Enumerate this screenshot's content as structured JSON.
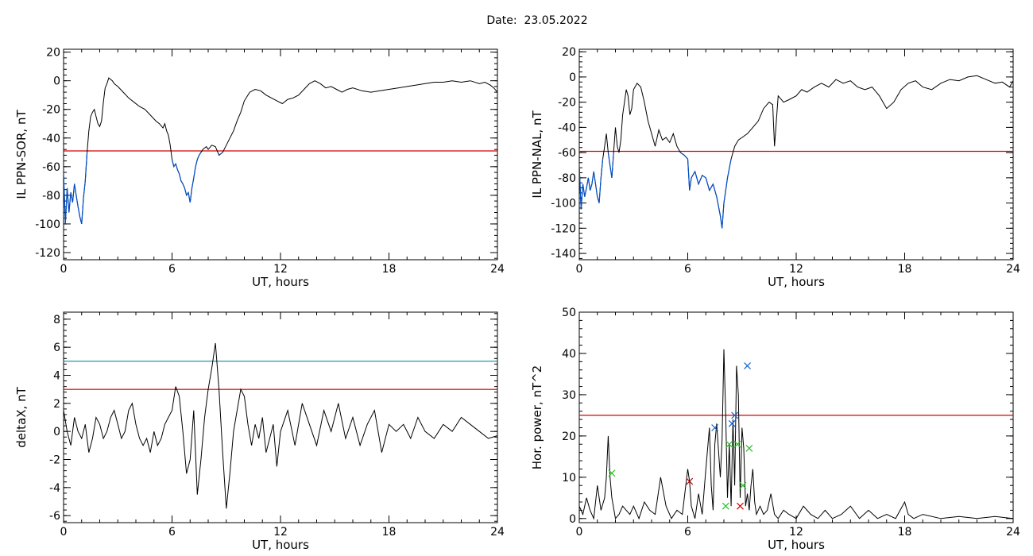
{
  "header": {
    "date_text": "Date:  23.05.2022"
  },
  "chart_data": [
    {
      "type": "line",
      "ylabel": "IL PPN-SOR, nT",
      "xlabel": "UT, hours",
      "xlim": [
        0,
        24
      ],
      "ylim": [
        -125,
        22
      ],
      "xticks": [
        0,
        6,
        12,
        18,
        24
      ],
      "yticks": [
        -120,
        -100,
        -80,
        -60,
        -40,
        -20,
        0,
        20
      ],
      "threshold": {
        "value": -49,
        "color": "#d40000"
      },
      "colors": {
        "line": "#000000",
        "highlight": "#0050c8"
      },
      "highlight_below": -49,
      "series": [
        {
          "x": [
            0,
            0.1,
            0.2,
            0.3,
            0.4,
            0.5,
            0.6,
            0.7,
            0.8,
            0.9,
            1.0,
            1.1,
            1.2,
            1.3,
            1.4,
            1.5,
            1.6,
            1.7,
            1.8,
            1.9,
            2.0,
            2.1,
            2.2,
            2.3,
            2.4,
            2.5,
            2.6,
            2.7,
            2.8,
            2.9,
            3.0,
            3.3,
            3.6,
            3.9,
            4.2,
            4.5,
            4.8,
            5.1,
            5.3,
            5.5,
            5.6,
            5.7,
            5.8,
            5.9,
            6.0,
            6.1,
            6.2,
            6.3,
            6.4,
            6.5,
            6.6,
            6.7,
            6.8,
            6.9,
            7.0,
            7.1,
            7.2,
            7.3,
            7.4,
            7.5,
            7.6,
            7.7,
            7.8,
            7.9,
            8.0,
            8.2,
            8.4,
            8.6,
            8.8,
            9.0,
            9.2,
            9.4,
            9.6,
            9.8,
            10.0,
            10.3,
            10.6,
            10.9,
            11.2,
            11.5,
            11.8,
            12.1,
            12.4,
            12.7,
            13.0,
            13.3,
            13.6,
            13.9,
            14.2,
            14.5,
            14.8,
            15.1,
            15.4,
            15.7,
            16.0,
            16.5,
            17.0,
            17.5,
            18.0,
            18.5,
            19.0,
            19.5,
            20.0,
            20.5,
            21.0,
            21.5,
            22.0,
            22.5,
            23.0,
            23.3,
            23.6,
            23.8,
            24.0
          ],
          "y": [
            -65,
            -100,
            -75,
            -92,
            -78,
            -85,
            -72,
            -80,
            -88,
            -95,
            -100,
            -82,
            -70,
            -50,
            -35,
            -25,
            -22,
            -20,
            -25,
            -30,
            -32,
            -28,
            -15,
            -5,
            -2,
            2,
            1,
            0,
            -2,
            -3,
            -4,
            -8,
            -12,
            -15,
            -18,
            -20,
            -24,
            -28,
            -30,
            -33,
            -30,
            -35,
            -38,
            -45,
            -55,
            -60,
            -58,
            -62,
            -65,
            -70,
            -72,
            -75,
            -80,
            -78,
            -85,
            -75,
            -68,
            -60,
            -55,
            -52,
            -50,
            -48,
            -47,
            -46,
            -48,
            -45,
            -46,
            -52,
            -50,
            -45,
            -40,
            -35,
            -28,
            -22,
            -14,
            -8,
            -6,
            -7,
            -10,
            -12,
            -14,
            -16,
            -13,
            -12,
            -10,
            -6,
            -2,
            0,
            -2,
            -5,
            -4,
            -6,
            -8,
            -6,
            -5,
            -7,
            -8,
            -7,
            -6,
            -5,
            -4,
            -3,
            -2,
            -1,
            -1,
            0,
            -1,
            0,
            -2,
            -1,
            -3,
            -5,
            -8
          ]
        }
      ]
    },
    {
      "type": "line",
      "ylabel": "IL PPN-NAL, nT",
      "xlabel": "UT, hours",
      "xlim": [
        0,
        24
      ],
      "ylim": [
        -145,
        22
      ],
      "xticks": [
        0,
        6,
        12,
        18,
        24
      ],
      "yticks": [
        -140,
        -120,
        -100,
        -80,
        -60,
        -40,
        -20,
        0,
        20
      ],
      "threshold": {
        "value": -59,
        "color": "#d40000"
      },
      "colors": {
        "line": "#000000",
        "highlight": "#0050c8"
      },
      "highlight_below": -59,
      "series": [
        {
          "x": [
            0,
            0.1,
            0.2,
            0.3,
            0.4,
            0.5,
            0.6,
            0.7,
            0.8,
            0.9,
            1.0,
            1.1,
            1.2,
            1.3,
            1.4,
            1.5,
            1.6,
            1.7,
            1.8,
            1.9,
            2.0,
            2.1,
            2.2,
            2.3,
            2.4,
            2.5,
            2.6,
            2.7,
            2.8,
            2.9,
            3.0,
            3.2,
            3.4,
            3.6,
            3.8,
            4.0,
            4.2,
            4.4,
            4.6,
            4.8,
            5.0,
            5.2,
            5.4,
            5.6,
            5.8,
            6.0,
            6.1,
            6.2,
            6.4,
            6.6,
            6.8,
            7.0,
            7.2,
            7.4,
            7.6,
            7.8,
            7.9,
            8.0,
            8.1,
            8.2,
            8.4,
            8.6,
            8.8,
            9.0,
            9.3,
            9.6,
            9.9,
            10.2,
            10.5,
            10.7,
            10.8,
            11.0,
            11.3,
            11.6,
            12.0,
            12.3,
            12.6,
            13.0,
            13.4,
            13.8,
            14.2,
            14.6,
            15.0,
            15.4,
            15.8,
            16.2,
            16.6,
            17.0,
            17.4,
            17.8,
            18.2,
            18.6,
            19.0,
            19.5,
            20.0,
            20.5,
            21.0,
            21.5,
            22.0,
            22.5,
            23.0,
            23.4,
            23.8,
            24.0
          ],
          "y": [
            -70,
            -105,
            -85,
            -95,
            -88,
            -80,
            -90,
            -85,
            -75,
            -85,
            -95,
            -100,
            -80,
            -65,
            -55,
            -45,
            -60,
            -70,
            -80,
            -60,
            -40,
            -55,
            -60,
            -50,
            -30,
            -20,
            -10,
            -15,
            -30,
            -25,
            -10,
            -5,
            -8,
            -20,
            -35,
            -45,
            -55,
            -42,
            -50,
            -48,
            -52,
            -45,
            -55,
            -60,
            -62,
            -65,
            -90,
            -80,
            -75,
            -85,
            -78,
            -80,
            -90,
            -85,
            -95,
            -110,
            -120,
            -100,
            -90,
            -80,
            -65,
            -55,
            -50,
            -48,
            -45,
            -40,
            -35,
            -25,
            -20,
            -22,
            -55,
            -15,
            -20,
            -18,
            -15,
            -10,
            -12,
            -8,
            -5,
            -8,
            -2,
            -5,
            -3,
            -8,
            -10,
            -8,
            -15,
            -25,
            -20,
            -10,
            -5,
            -3,
            -8,
            -10,
            -5,
            -2,
            -3,
            0,
            1,
            -2,
            -5,
            -4,
            -8,
            -3
          ]
        }
      ]
    },
    {
      "type": "line",
      "ylabel": "deltaX, nT",
      "xlabel": "UT, hours",
      "xlim": [
        0,
        24
      ],
      "ylim": [
        -6.5,
        8.5
      ],
      "xticks": [
        0,
        6,
        12,
        18,
        24
      ],
      "yticks": [
        -6,
        -4,
        -2,
        0,
        2,
        4,
        6,
        8
      ],
      "thresholds": [
        {
          "value": 5,
          "color": "#0a8a96"
        },
        {
          "value": 3,
          "color": "#d40000"
        }
      ],
      "colors": {
        "line": "#000000"
      },
      "series": [
        {
          "x": [
            0,
            0.2,
            0.4,
            0.6,
            0.8,
            1.0,
            1.2,
            1.4,
            1.6,
            1.8,
            2.0,
            2.2,
            2.4,
            2.6,
            2.8,
            3.0,
            3.2,
            3.4,
            3.6,
            3.8,
            4.0,
            4.2,
            4.4,
            4.6,
            4.8,
            5.0,
            5.2,
            5.4,
            5.6,
            5.8,
            6.0,
            6.2,
            6.4,
            6.6,
            6.8,
            7.0,
            7.2,
            7.4,
            7.6,
            7.8,
            8.0,
            8.2,
            8.4,
            8.6,
            8.8,
            9.0,
            9.2,
            9.4,
            9.6,
            9.8,
            10.0,
            10.2,
            10.4,
            10.6,
            10.8,
            11.0,
            11.2,
            11.4,
            11.6,
            11.8,
            12.0,
            12.4,
            12.8,
            13.2,
            13.6,
            14.0,
            14.4,
            14.8,
            15.2,
            15.6,
            16.0,
            16.4,
            16.8,
            17.2,
            17.6,
            18.0,
            18.4,
            18.8,
            19.2,
            19.6,
            20.0,
            20.5,
            21.0,
            21.5,
            22.0,
            22.5,
            23.0,
            23.5,
            24.0
          ],
          "y": [
            1.5,
            0.0,
            -1.0,
            1.0,
            0.0,
            -0.5,
            0.5,
            -1.5,
            -0.5,
            1.0,
            0.5,
            -0.5,
            0.0,
            1.0,
            1.5,
            0.5,
            -0.5,
            0.0,
            1.5,
            2.0,
            0.5,
            -0.5,
            -1.0,
            -0.5,
            -1.5,
            0.0,
            -1.0,
            -0.5,
            0.5,
            1.0,
            1.5,
            3.2,
            2.5,
            0.0,
            -3.0,
            -2.0,
            1.5,
            -4.5,
            -2.0,
            1.0,
            3.0,
            4.5,
            6.3,
            3.0,
            -1.5,
            -5.5,
            -3.0,
            0.0,
            1.5,
            3.0,
            2.5,
            0.5,
            -1.0,
            0.5,
            -0.5,
            1.0,
            -1.5,
            -0.5,
            0.5,
            -2.5,
            0.0,
            1.5,
            -1.0,
            2.0,
            0.5,
            -1.0,
            1.5,
            0.0,
            2.0,
            -0.5,
            1.0,
            -1.0,
            0.5,
            1.5,
            -1.5,
            0.5,
            0.0,
            0.5,
            -0.5,
            1.0,
            0.0,
            -0.5,
            0.5,
            0.0,
            1.0,
            0.5,
            0.0,
            -0.5,
            -0.3
          ]
        }
      ]
    },
    {
      "type": "line",
      "ylabel": "Hor. power, nT^2",
      "xlabel": "UT, hours",
      "xlim": [
        0,
        24
      ],
      "ylim": [
        -1,
        50
      ],
      "xticks": [
        0,
        6,
        12,
        18,
        24
      ],
      "yticks": [
        0,
        10,
        20,
        30,
        40,
        50
      ],
      "threshold": {
        "value": 25,
        "color": "#d40000"
      },
      "colors": {
        "line": "#000000"
      },
      "series": [
        {
          "x": [
            0,
            0.2,
            0.4,
            0.6,
            0.8,
            1.0,
            1.2,
            1.4,
            1.5,
            1.6,
            1.7,
            1.8,
            2.0,
            2.2,
            2.4,
            2.6,
            2.8,
            3.0,
            3.3,
            3.6,
            3.9,
            4.2,
            4.5,
            4.8,
            5.1,
            5.4,
            5.7,
            6.0,
            6.1,
            6.2,
            6.4,
            6.6,
            6.8,
            7.0,
            7.2,
            7.3,
            7.4,
            7.5,
            7.6,
            7.8,
            7.9,
            8.0,
            8.1,
            8.2,
            8.3,
            8.4,
            8.5,
            8.6,
            8.7,
            8.8,
            8.9,
            9.0,
            9.1,
            9.2,
            9.3,
            9.4,
            9.5,
            9.6,
            9.7,
            9.8,
            10.0,
            10.2,
            10.4,
            10.6,
            10.8,
            11.0,
            11.3,
            11.6,
            12.0,
            12.4,
            12.8,
            13.2,
            13.6,
            14.0,
            14.5,
            15.0,
            15.5,
            16.0,
            16.5,
            17.0,
            17.5,
            18.0,
            18.2,
            18.5,
            19.0,
            20.0,
            21.0,
            22.0,
            23.0,
            24.0
          ],
          "y": [
            3,
            1,
            5,
            2,
            0,
            8,
            2,
            5,
            10,
            20,
            10,
            5,
            0,
            1,
            3,
            2,
            1,
            3,
            0,
            4,
            2,
            1,
            10,
            3,
            0,
            2,
            1,
            12,
            9,
            3,
            0,
            6,
            1,
            12,
            22,
            8,
            2,
            18,
            23,
            10,
            19,
            41,
            25,
            5,
            18,
            3,
            24,
            8,
            37,
            30,
            5,
            22,
            17,
            3,
            6,
            2,
            8,
            12,
            4,
            1,
            3,
            1,
            2,
            6,
            1,
            0,
            2,
            1,
            0,
            3,
            1,
            0,
            2,
            0,
            1,
            3,
            0,
            2,
            0,
            1,
            0,
            4,
            1,
            0,
            1,
            0,
            0.5,
            0,
            0.5,
            0
          ]
        }
      ],
      "markers": [
        {
          "x": 1.8,
          "y": 11,
          "color": "#22c422"
        },
        {
          "x": 6.1,
          "y": 9,
          "color": "#a01010"
        },
        {
          "x": 7.5,
          "y": 22,
          "color": "#1060d0"
        },
        {
          "x": 8.1,
          "y": 3,
          "color": "#22c422"
        },
        {
          "x": 8.3,
          "y": 18,
          "color": "#22c422"
        },
        {
          "x": 8.45,
          "y": 23,
          "color": "#1060d0"
        },
        {
          "x": 8.6,
          "y": 25,
          "color": "#1060d0"
        },
        {
          "x": 8.75,
          "y": 18,
          "color": "#22c422"
        },
        {
          "x": 8.9,
          "y": 3,
          "color": "#d40000"
        },
        {
          "x": 9.05,
          "y": 8,
          "color": "#22c422"
        },
        {
          "x": 9.3,
          "y": 37,
          "color": "#1060d0"
        },
        {
          "x": 9.4,
          "y": 17,
          "color": "#22c422"
        }
      ]
    }
  ]
}
